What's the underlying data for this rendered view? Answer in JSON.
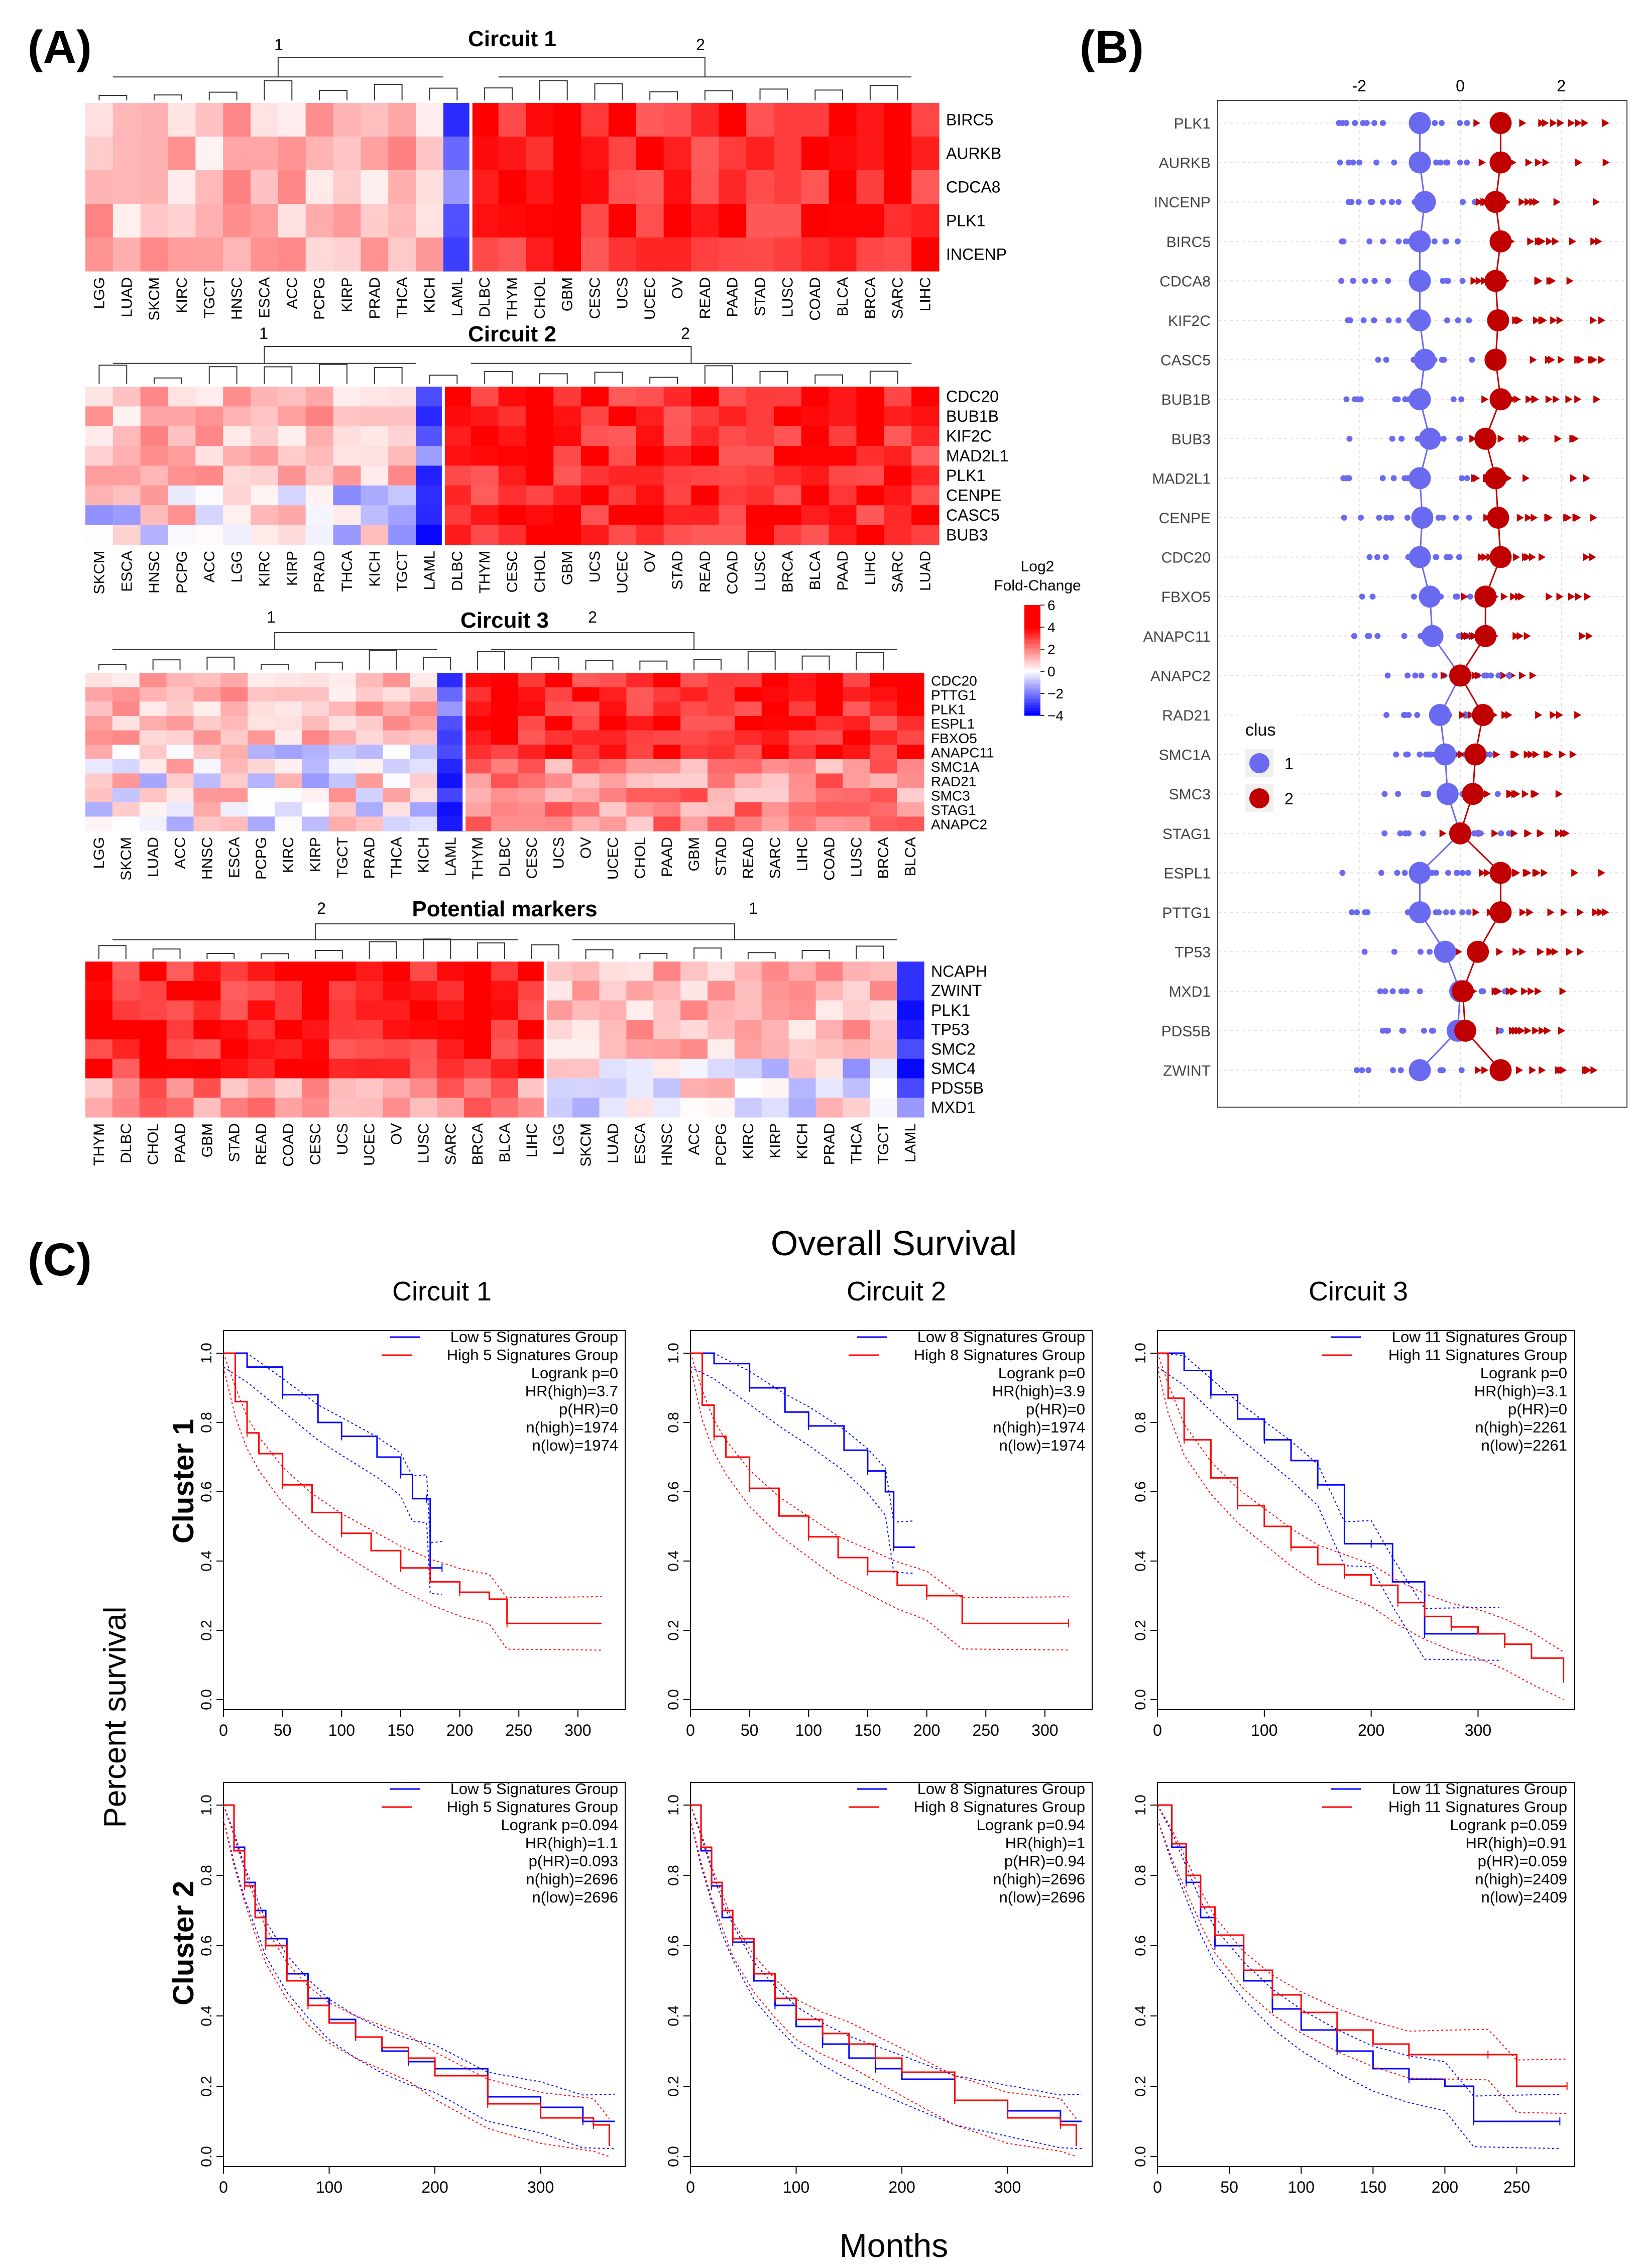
{
  "panel_labels": {
    "a": "(A)",
    "b": "(B)",
    "c": "(C)"
  },
  "colors": {
    "low": "#0000ff",
    "mid": "#ffffff",
    "high": "#ff0000",
    "cluster1": "#6a6af0",
    "cluster2": "#c00000",
    "surv_low": "#0000ff",
    "surv_high": "#ff0000"
  },
  "colorbar": {
    "title_line1": "Log2",
    "title_line2": "Fold-Change",
    "ticks": [
      "6",
      "4",
      "2",
      "0",
      "−2",
      "−4"
    ]
  },
  "dot_legend": {
    "title": "clus",
    "items": [
      "1",
      "2"
    ]
  },
  "survival_header": {
    "title": "Overall Survival",
    "circuit_titles": [
      "Circuit 1",
      "Circuit 2",
      "Circuit 3"
    ],
    "row_titles": [
      "Cluster 1",
      "Cluster 2"
    ],
    "ylabel": "Percent survival",
    "xlabel": "Months"
  },
  "chart_data": [
    {
      "type": "heatmap",
      "title": "Circuit 1",
      "group_labels": [
        "1",
        "2"
      ],
      "columns": [
        "LGG",
        "LUAD",
        "SKCM",
        "KIRC",
        "TGCT",
        "HNSC",
        "ESCA",
        "ACC",
        "PCPG",
        "KIRP",
        "PRAD",
        "THCA",
        "KICH",
        "LAML",
        "DLBC",
        "THYM",
        "CHOL",
        "GBM",
        "CESC",
        "UCS",
        "UCEC",
        "OV",
        "READ",
        "PAAD",
        "STAD",
        "LUSC",
        "COAD",
        "BLCA",
        "BRCA",
        "SARC",
        "LIHC"
      ],
      "rows": [
        "BIRC5",
        "AURKB",
        "CDCA8",
        "PLK1",
        "INCENP"
      ],
      "split_after": 14,
      "low_col": 13
    },
    {
      "type": "heatmap",
      "title": "Circuit 2",
      "group_labels": [
        "1",
        "2"
      ],
      "columns": [
        "SKCM",
        "ESCA",
        "HNSC",
        "PCPG",
        "ACC",
        "LGG",
        "KIRC",
        "KIRP",
        "PRAD",
        "THCA",
        "KICH",
        "TGCT",
        "LAML",
        "DLBC",
        "THYM",
        "CESC",
        "CHOL",
        "GBM",
        "UCS",
        "UCEC",
        "OV",
        "STAD",
        "READ",
        "COAD",
        "LUSC",
        "BRCA",
        "BLCA",
        "PAAD",
        "LIHC",
        "SARC",
        "LUAD"
      ],
      "rows": [
        "CDC20",
        "BUB1B",
        "KIF2C",
        "MAD2L1",
        "PLK1",
        "CENPE",
        "CASC5",
        "BUB3"
      ],
      "split_after": 13,
      "low_col": 12
    },
    {
      "type": "heatmap",
      "title": "Circuit 3",
      "group_labels": [
        "1",
        "2"
      ],
      "columns": [
        "LGG",
        "SKCM",
        "LUAD",
        "ACC",
        "HNSC",
        "ESCA",
        "PCPG",
        "KIRC",
        "KIRP",
        "TGCT",
        "PRAD",
        "THCA",
        "KICH",
        "LAML",
        "THYM",
        "DLBC",
        "CESC",
        "UCS",
        "OV",
        "UCEC",
        "CHOL",
        "PAAD",
        "GBM",
        "STAD",
        "READ",
        "SARC",
        "LIHC",
        "COAD",
        "LUSC",
        "BRCA",
        "BLCA"
      ],
      "rows": [
        "CDC20",
        "PTTG1",
        "PLK1",
        "ESPL1",
        "FBXO5",
        "ANAPC11",
        "SMC1A",
        "RAD21",
        "SMC3",
        "STAG1",
        "ANAPC2"
      ],
      "split_after": 14,
      "low_col": 13
    },
    {
      "type": "heatmap",
      "title": "Potential markers",
      "group_labels": [
        "2",
        "1"
      ],
      "columns": [
        "THYM",
        "DLBC",
        "CHOL",
        "PAAD",
        "GBM",
        "STAD",
        "READ",
        "COAD",
        "CESC",
        "UCS",
        "UCEC",
        "OV",
        "LUSC",
        "SARC",
        "BRCA",
        "BLCA",
        "LIHC",
        "LGG",
        "SKCM",
        "LUAD",
        "ESCA",
        "HNSC",
        "ACC",
        "PCPG",
        "KIRC",
        "KIRP",
        "KICH",
        "PRAD",
        "THCA",
        "TGCT",
        "LAML"
      ],
      "rows": [
        "NCAPH",
        "ZWINT",
        "PLK1",
        "TP53",
        "SMC2",
        "SMC4",
        "PDS5B",
        "MXD1"
      ],
      "split_after": 17,
      "low_col": 30
    },
    {
      "type": "scatter",
      "title": "(B)",
      "x_ticks": [
        "-2",
        "0",
        "2"
      ],
      "xlim": [
        -4.8,
        3.3
      ],
      "genes": [
        "PLK1",
        "AURKB",
        "INCENP",
        "BIRC5",
        "CDCA8",
        "KIF2C",
        "CASC5",
        "BUB1B",
        "BUB3",
        "MAD2L1",
        "CENPE",
        "CDC20",
        "FBXO5",
        "ANAPC11",
        "ANAPC2",
        "RAD21",
        "SMC1A",
        "SMC3",
        "STAG1",
        "ESPL1",
        "PTTG1",
        "TP53",
        "MXD1",
        "PDS5B",
        "ZWINT"
      ],
      "cluster1_center": [
        -0.8,
        -0.8,
        -0.7,
        -0.8,
        -0.8,
        -0.8,
        -0.7,
        -0.8,
        -0.6,
        -0.8,
        -0.75,
        -0.8,
        -0.6,
        -0.55,
        0.0,
        -0.4,
        -0.3,
        -0.25,
        0.0,
        -0.8,
        -0.8,
        -0.3,
        0.0,
        -0.05,
        -0.8
      ],
      "cluster2_center": [
        0.8,
        0.8,
        0.7,
        0.8,
        0.7,
        0.75,
        0.7,
        0.8,
        0.5,
        0.7,
        0.75,
        0.8,
        0.5,
        0.5,
        0.0,
        0.45,
        0.3,
        0.25,
        0.0,
        0.8,
        0.8,
        0.35,
        0.05,
        0.1,
        0.8
      ]
    },
    {
      "type": "line",
      "title": "Circuit 1 / Cluster 1",
      "xlim": [
        0,
        340
      ],
      "x_ticks": [
        0,
        50,
        100,
        150,
        200,
        250,
        300
      ],
      "y_ticks": [
        "0.0",
        "0.2",
        "0.4",
        "0.6",
        "0.8",
        "1.0"
      ],
      "legend": [
        "Low 5 Signatures Group",
        "High 5 Signatures Group"
      ],
      "stats": [
        "Logrank p=0",
        "HR(high)=3.7",
        "p(HR)=0",
        "n(high)=1974",
        "n(low)=1974"
      ],
      "series": [
        {
          "name": "Low",
          "x": [
            0,
            20,
            50,
            80,
            100,
            130,
            150,
            160,
            172,
            175,
            185
          ],
          "y": [
            1,
            0.96,
            0.88,
            0.8,
            0.76,
            0.7,
            0.65,
            0.58,
            0.58,
            0.38,
            0.38
          ]
        },
        {
          "name": "High",
          "x": [
            0,
            10,
            20,
            30,
            50,
            75,
            100,
            125,
            150,
            175,
            200,
            225,
            240,
            320
          ],
          "y": [
            1,
            0.86,
            0.77,
            0.71,
            0.62,
            0.54,
            0.48,
            0.43,
            0.38,
            0.34,
            0.31,
            0.29,
            0.22,
            0.22
          ]
        }
      ]
    },
    {
      "type": "line",
      "title": "Circuit 2 / Cluster 1",
      "xlim": [
        0,
        340
      ],
      "x_ticks": [
        0,
        50,
        100,
        150,
        200,
        250,
        300
      ],
      "y_ticks": [
        "0.0",
        "0.2",
        "0.4",
        "0.6",
        "0.8",
        "1.0"
      ],
      "legend": [
        "Low 8 Signatures Group",
        "High 8 Signatures Group"
      ],
      "stats": [
        "Logrank p=0",
        "HR(high)=3.9",
        "p(HR)=0",
        "n(high)=1974",
        "n(low)=1974"
      ],
      "series": [
        {
          "name": "Low",
          "x": [
            0,
            20,
            50,
            80,
            100,
            130,
            150,
            165,
            172,
            190
          ],
          "y": [
            1,
            0.97,
            0.9,
            0.83,
            0.79,
            0.72,
            0.66,
            0.6,
            0.44,
            0.44
          ]
        },
        {
          "name": "High",
          "x": [
            0,
            10,
            20,
            30,
            50,
            75,
            100,
            125,
            150,
            175,
            200,
            230,
            320
          ],
          "y": [
            1,
            0.85,
            0.76,
            0.7,
            0.61,
            0.53,
            0.47,
            0.41,
            0.37,
            0.33,
            0.3,
            0.22,
            0.22
          ]
        }
      ]
    },
    {
      "type": "line",
      "title": "Circuit 3 / Cluster 1",
      "xlim": [
        0,
        390
      ],
      "x_ticks": [
        0,
        100,
        200,
        300
      ],
      "y_ticks": [
        "0.0",
        "0.2",
        "0.4",
        "0.6",
        "0.8",
        "1.0"
      ],
      "legend": [
        "Low 11 Signatures Group",
        "High 11 Signatures Group"
      ],
      "stats": [
        "Logrank p=0",
        "HR(high)=3.1",
        "p(HR)=0",
        "n(high)=2261",
        "n(low)=2261"
      ],
      "series": [
        {
          "name": "Low",
          "x": [
            0,
            25,
            50,
            75,
            100,
            125,
            150,
            175,
            200,
            220,
            250,
            320
          ],
          "y": [
            1,
            0.95,
            0.88,
            0.81,
            0.75,
            0.69,
            0.62,
            0.45,
            0.45,
            0.34,
            0.19,
            0.19
          ]
        },
        {
          "name": "High",
          "x": [
            0,
            10,
            25,
            50,
            75,
            100,
            125,
            150,
            175,
            200,
            225,
            250,
            275,
            300,
            325,
            350,
            380
          ],
          "y": [
            1,
            0.87,
            0.75,
            0.64,
            0.56,
            0.5,
            0.44,
            0.39,
            0.36,
            0.33,
            0.28,
            0.24,
            0.21,
            0.19,
            0.16,
            0.12,
            0.06
          ]
        }
      ]
    },
    {
      "type": "line",
      "title": "Circuit 1 / Cluster 2",
      "xlim": [
        0,
        380
      ],
      "x_ticks": [
        0,
        100,
        200,
        300
      ],
      "y_ticks": [
        "0.0",
        "0.2",
        "0.4",
        "0.6",
        "0.8",
        "1.0"
      ],
      "legend": [
        "Low 5 Signatures Group",
        "High 5 Signatures Group"
      ],
      "stats": [
        "Logrank p=0.094",
        "HR(high)=1.1",
        "p(HR)=0.093",
        "n(high)=2696",
        "n(low)=2696"
      ],
      "series": [
        {
          "name": "Low",
          "x": [
            0,
            10,
            20,
            30,
            40,
            60,
            80,
            100,
            125,
            150,
            175,
            200,
            250,
            300,
            340,
            370
          ],
          "y": [
            1,
            0.88,
            0.78,
            0.7,
            0.62,
            0.52,
            0.45,
            0.39,
            0.34,
            0.3,
            0.27,
            0.25,
            0.17,
            0.14,
            0.1,
            0.1
          ]
        },
        {
          "name": "High",
          "x": [
            0,
            10,
            20,
            30,
            40,
            60,
            80,
            100,
            125,
            150,
            175,
            200,
            250,
            300,
            350,
            365
          ],
          "y": [
            1,
            0.87,
            0.77,
            0.68,
            0.6,
            0.5,
            0.43,
            0.38,
            0.34,
            0.31,
            0.28,
            0.23,
            0.15,
            0.11,
            0.09,
            0.03
          ]
        }
      ]
    },
    {
      "type": "line",
      "title": "Circuit 2 / Cluster 2",
      "xlim": [
        0,
        380
      ],
      "x_ticks": [
        0,
        100,
        200,
        300
      ],
      "y_ticks": [
        "0.0",
        "0.2",
        "0.4",
        "0.6",
        "0.8",
        "1.0"
      ],
      "legend": [
        "Low 8 Signatures Group",
        "High 8 Signatures Group"
      ],
      "stats": [
        "Logrank p=0.94",
        "HR(high)=1",
        "p(HR)=0.94",
        "n(high)=2696",
        "n(low)=2696"
      ],
      "series": [
        {
          "name": "Low",
          "x": [
            0,
            10,
            20,
            30,
            40,
            60,
            80,
            100,
            125,
            150,
            175,
            200,
            250,
            300,
            350,
            370
          ],
          "y": [
            1,
            0.87,
            0.77,
            0.68,
            0.61,
            0.5,
            0.43,
            0.37,
            0.32,
            0.28,
            0.25,
            0.22,
            0.16,
            0.13,
            0.1,
            0.1
          ]
        },
        {
          "name": "High",
          "x": [
            0,
            10,
            20,
            30,
            40,
            60,
            80,
            100,
            125,
            150,
            175,
            200,
            250,
            300,
            350,
            365
          ],
          "y": [
            1,
            0.88,
            0.78,
            0.7,
            0.62,
            0.52,
            0.45,
            0.39,
            0.35,
            0.32,
            0.28,
            0.24,
            0.16,
            0.11,
            0.09,
            0.03
          ]
        }
      ]
    },
    {
      "type": "line",
      "title": "Circuit 3 / Cluster 2",
      "xlim": [
        0,
        290
      ],
      "x_ticks": [
        0,
        50,
        100,
        150,
        200,
        250
      ],
      "y_ticks": [
        "0.0",
        "0.2",
        "0.4",
        "0.6",
        "0.8",
        "1.0"
      ],
      "legend": [
        "Low 11 Signatures Group",
        "High 11 Signatures Group"
      ],
      "stats": [
        "Logrank p=0.059",
        "HR(high)=0.91",
        "p(HR)=0.059",
        "n(high)=2409",
        "n(low)=2409"
      ],
      "series": [
        {
          "name": "Low",
          "x": [
            0,
            10,
            20,
            30,
            40,
            60,
            80,
            100,
            125,
            150,
            175,
            200,
            220,
            250,
            280
          ],
          "y": [
            1,
            0.88,
            0.78,
            0.68,
            0.6,
            0.5,
            0.42,
            0.36,
            0.3,
            0.25,
            0.22,
            0.2,
            0.1,
            0.1,
            0.1
          ]
        },
        {
          "name": "High",
          "x": [
            0,
            10,
            20,
            30,
            40,
            60,
            80,
            100,
            125,
            150,
            175,
            200,
            230,
            250,
            285
          ],
          "y": [
            1,
            0.89,
            0.8,
            0.71,
            0.63,
            0.53,
            0.46,
            0.41,
            0.36,
            0.32,
            0.29,
            0.29,
            0.29,
            0.2,
            0.2
          ]
        }
      ]
    }
  ]
}
